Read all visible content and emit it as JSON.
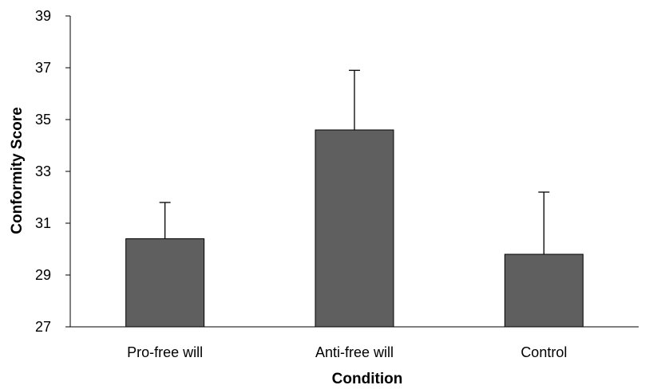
{
  "chart_data": {
    "type": "bar",
    "categories": [
      "Pro-free will",
      "Anti-free will",
      "Control"
    ],
    "values": [
      30.4,
      34.6,
      29.8
    ],
    "error_upper": [
      31.8,
      36.9,
      32.2
    ],
    "xlabel": "Condition",
    "ylabel": "Conformity Score",
    "ylim": [
      27,
      39
    ],
    "yticks": [
      27,
      29,
      31,
      33,
      35,
      37,
      39
    ],
    "grid": false,
    "bar_color": "#5f5f5f",
    "bar_edge_color": "#000000"
  }
}
